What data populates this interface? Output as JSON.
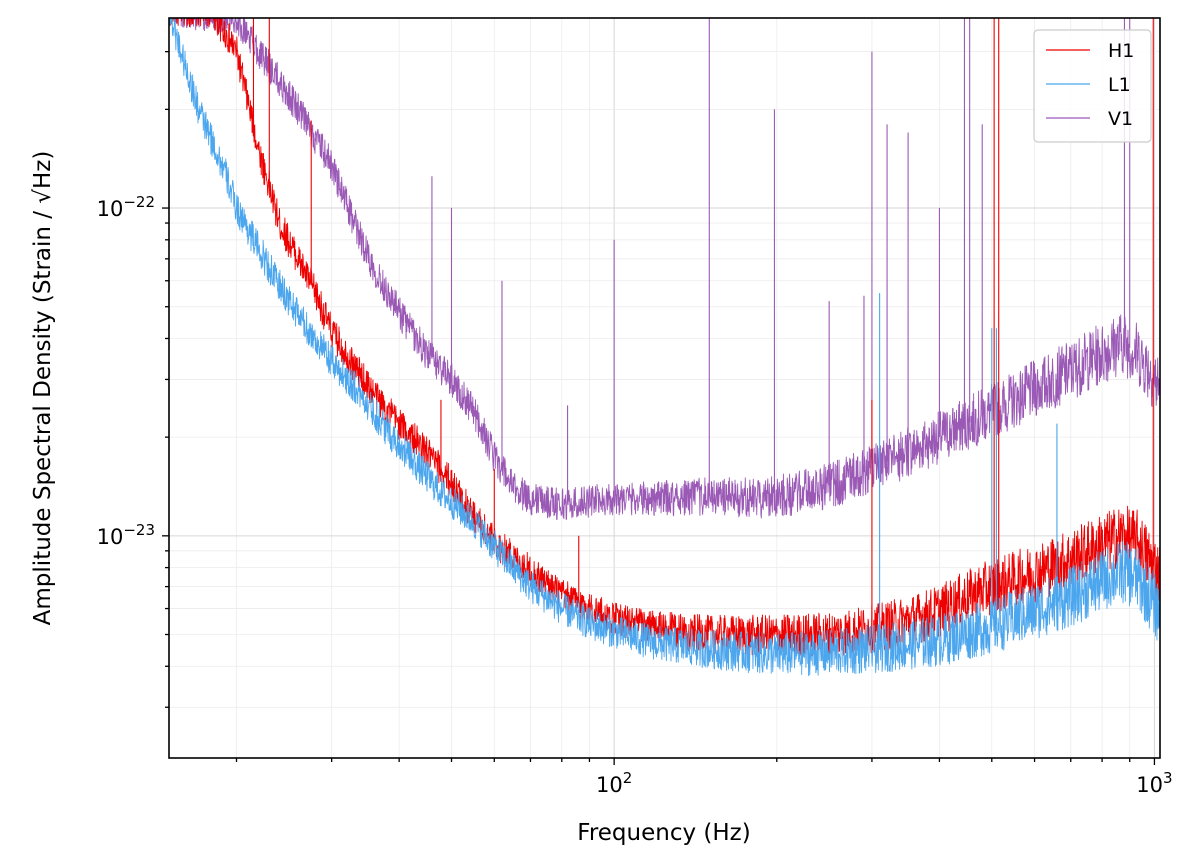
{
  "chart_data": {
    "type": "line",
    "xlabel": "Frequency (Hz)",
    "ylabel": "Amplitude Spectral Density (Strain / √Hz)",
    "xscale": "log",
    "yscale": "log",
    "xlim": [
      15,
      1024
    ],
    "ylim": [
      2.1e-24,
      3.8e-22
    ],
    "x_ticks": [
      {
        "value": 100,
        "base": "10",
        "exp": "2"
      },
      {
        "value": 1000,
        "base": "10",
        "exp": "3"
      }
    ],
    "y_ticks": [
      {
        "value": 1e-23,
        "base": "10",
        "exp": "−23"
      },
      {
        "value": 1e-22,
        "base": "10",
        "exp": "−22"
      }
    ],
    "grid": true,
    "legend_position": "top-right",
    "series": [
      {
        "name": "H1",
        "color": "#ee0000",
        "points": [
          [
            15,
            4e-22
          ],
          [
            18,
            4e-22
          ],
          [
            20,
            3e-22
          ],
          [
            22,
            1.5e-22
          ],
          [
            24,
            9e-23
          ],
          [
            26,
            7e-23
          ],
          [
            28,
            5.5e-23
          ],
          [
            30,
            4.2e-23
          ],
          [
            33,
            3.3e-23
          ],
          [
            36,
            2.7e-23
          ],
          [
            40,
            2.2e-23
          ],
          [
            45,
            1.8e-23
          ],
          [
            50,
            1.45e-23
          ],
          [
            55,
            1.15e-23
          ],
          [
            60,
            9.6e-24
          ],
          [
            70,
            7.8e-24
          ],
          [
            80,
            6.6e-24
          ],
          [
            90,
            6e-24
          ],
          [
            100,
            5.6e-24
          ],
          [
            120,
            5.2e-24
          ],
          [
            150,
            5e-24
          ],
          [
            200,
            4.95e-24
          ],
          [
            250,
            5e-24
          ],
          [
            300,
            5.2e-24
          ],
          [
            350,
            5.5e-24
          ],
          [
            400,
            5.9e-24
          ],
          [
            450,
            6.5e-24
          ],
          [
            500,
            7e-24
          ],
          [
            600,
            7.7e-24
          ],
          [
            700,
            8.5e-24
          ],
          [
            800,
            9.4e-24
          ],
          [
            870,
            1e-23
          ],
          [
            930,
            9.6e-24
          ],
          [
            980,
            8.4e-24
          ],
          [
            1024,
            7.6e-24
          ]
        ],
        "peaks": [
          [
            21.5,
            3.8e-22
          ],
          [
            23,
            3.8e-22
          ],
          [
            27.5,
            1.85e-22
          ],
          [
            31,
            4.2e-23
          ],
          [
            47.8,
            2.6e-23
          ],
          [
            60,
            1.6e-23
          ],
          [
            86,
            1e-23
          ],
          [
            300,
            2.6e-23
          ],
          [
            505,
            3.8e-22
          ],
          [
            515,
            3.8e-22
          ],
          [
            995,
            3.8e-22
          ]
        ]
      },
      {
        "name": "L1",
        "color": "#4ba6ee",
        "points": [
          [
            15,
            4e-22
          ],
          [
            17,
            2e-22
          ],
          [
            19,
            1.3e-22
          ],
          [
            20,
            1e-22
          ],
          [
            22,
            7.5e-23
          ],
          [
            24,
            5.8e-23
          ],
          [
            27,
            4.3e-23
          ],
          [
            30,
            3.4e-23
          ],
          [
            34,
            2.7e-23
          ],
          [
            38,
            2.1e-23
          ],
          [
            43,
            1.65e-23
          ],
          [
            48,
            1.35e-23
          ],
          [
            55,
            1.1e-23
          ],
          [
            62,
            8.7e-24
          ],
          [
            70,
            7e-24
          ],
          [
            80,
            6e-24
          ],
          [
            90,
            5.4e-24
          ],
          [
            100,
            5.1e-24
          ],
          [
            120,
            4.7e-24
          ],
          [
            150,
            4.5e-24
          ],
          [
            200,
            4.35e-24
          ],
          [
            250,
            4.4e-24
          ],
          [
            300,
            4.5e-24
          ],
          [
            400,
            4.8e-24
          ],
          [
            500,
            5.3e-24
          ],
          [
            600,
            5.9e-24
          ],
          [
            700,
            6.5e-24
          ],
          [
            800,
            7.3e-24
          ],
          [
            870,
            7.8e-24
          ],
          [
            930,
            7.4e-24
          ],
          [
            980,
            6.5e-24
          ],
          [
            1024,
            5.8e-24
          ]
        ],
        "peaks": [
          [
            310,
            5.5e-23
          ],
          [
            500,
            4.3e-23
          ],
          [
            510,
            4.3e-23
          ],
          [
            660,
            2.2e-23
          ]
        ]
      },
      {
        "name": "V1",
        "color": "#9b59b6",
        "points": [
          [
            15,
            4e-22
          ],
          [
            20,
            3.8e-22
          ],
          [
            23,
            2.7e-22
          ],
          [
            26,
            2e-22
          ],
          [
            30,
            1.35e-22
          ],
          [
            33,
            9e-23
          ],
          [
            36,
            6.5e-23
          ],
          [
            40,
            4.8e-23
          ],
          [
            45,
            3.6e-23
          ],
          [
            50,
            3e-23
          ],
          [
            55,
            2.4e-23
          ],
          [
            60,
            1.75e-23
          ],
          [
            65,
            1.4e-23
          ],
          [
            70,
            1.3e-23
          ],
          [
            80,
            1.25e-23
          ],
          [
            100,
            1.3e-23
          ],
          [
            120,
            1.3e-23
          ],
          [
            150,
            1.32e-23
          ],
          [
            180,
            1.3e-23
          ],
          [
            220,
            1.35e-23
          ],
          [
            260,
            1.45e-23
          ],
          [
            300,
            1.6e-23
          ],
          [
            350,
            1.8e-23
          ],
          [
            400,
            2e-23
          ],
          [
            450,
            2.2e-23
          ],
          [
            500,
            2.4e-23
          ],
          [
            550,
            2.6e-23
          ],
          [
            600,
            2.8e-23
          ],
          [
            700,
            3.2e-23
          ],
          [
            800,
            3.6e-23
          ],
          [
            870,
            3.9e-23
          ],
          [
            930,
            3.6e-23
          ],
          [
            980,
            3.2e-23
          ],
          [
            1024,
            2.8e-23
          ]
        ],
        "peaks": [
          [
            24,
            2.2e-22
          ],
          [
            28,
            1.6e-22
          ],
          [
            46,
            1.25e-22
          ],
          [
            50,
            1e-22
          ],
          [
            62,
            6e-23
          ],
          [
            100,
            8e-23
          ],
          [
            82,
            2.5e-23
          ],
          [
            150,
            3.8e-22
          ],
          [
            198,
            2e-22
          ],
          [
            250,
            5.2e-23
          ],
          [
            290,
            5.4e-23
          ],
          [
            300,
            3e-22
          ],
          [
            320,
            1.8e-22
          ],
          [
            350,
            1.7e-22
          ],
          [
            400,
            1e-22
          ],
          [
            445,
            3.8e-22
          ],
          [
            455,
            3.8e-22
          ],
          [
            480,
            1.8e-22
          ],
          [
            880,
            3.8e-22
          ],
          [
            900,
            3.8e-22
          ]
        ]
      }
    ]
  }
}
